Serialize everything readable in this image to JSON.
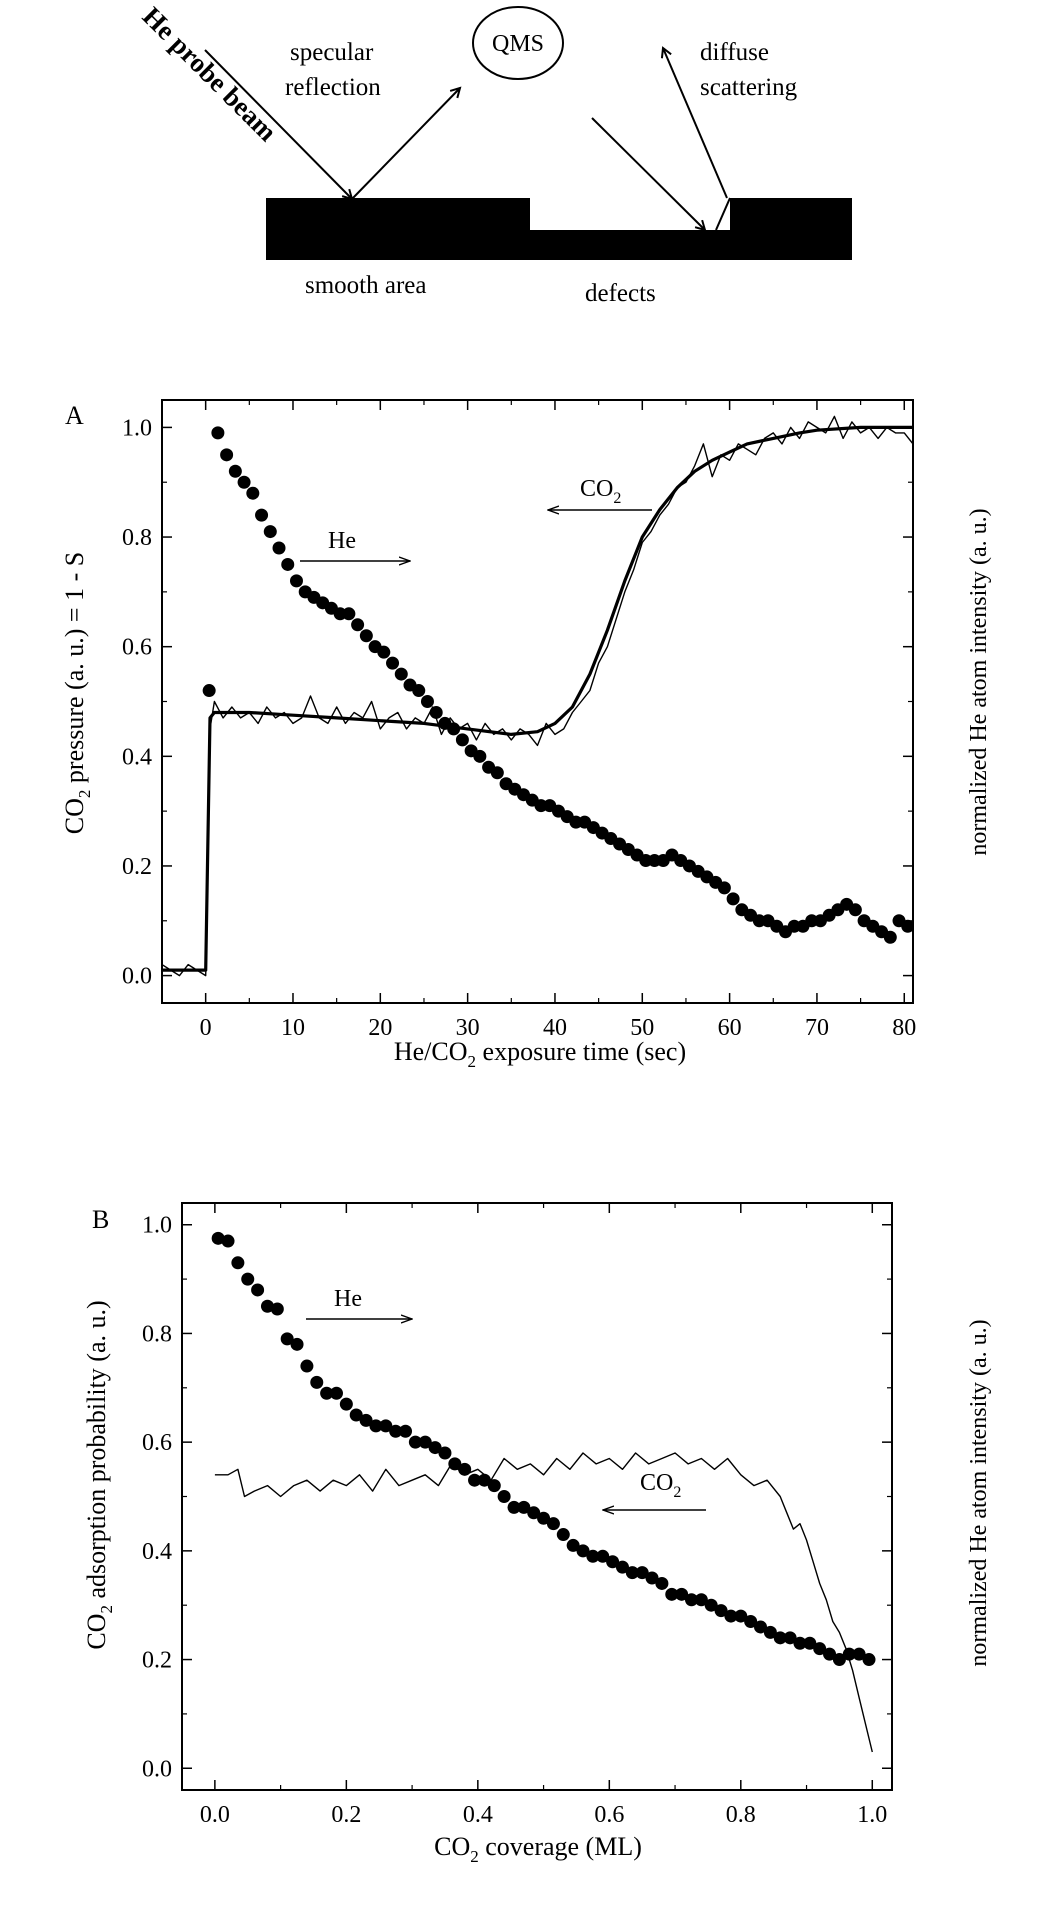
{
  "schematic": {
    "beam_label": "He probe beam",
    "specular_label_1": "specular",
    "specular_label_2": "reflection",
    "detector_label": "QMS",
    "diffuse_label_1": "diffuse",
    "diffuse_label_2": "scattering",
    "smooth_label": "smooth area",
    "defects_label": "defects"
  },
  "chart_data": [
    {
      "type": "line",
      "panel_label": "A",
      "xlabel": "He/CO2 exposure time (sec)",
      "ylabel": "CO2 pressure (a. u.) = 1 - S",
      "ylabel_right": "normalized He atom intensity (a. u.)",
      "xlim": [
        -5,
        81
      ],
      "ylim": [
        -0.05,
        1.05
      ],
      "x_ticks": [
        0,
        10,
        20,
        30,
        40,
        50,
        60,
        70,
        80
      ],
      "y_ticks": [
        "0.0",
        "0.2",
        "0.4",
        "0.6",
        "0.8",
        "1.0"
      ],
      "annotations": [
        {
          "text": "He",
          "arrow": "right",
          "x": 14,
          "y": 0.74
        },
        {
          "text": "CO2",
          "arrow": "left",
          "x": 47,
          "y": 0.83
        }
      ],
      "series": [
        {
          "name": "He",
          "style": "markers",
          "x": [
            0.4,
            1.4,
            2.4,
            3.4,
            4.4,
            5.4,
            6.4,
            7.4,
            8.4,
            9.4,
            10.4,
            11.4,
            12.4,
            13.4,
            14.4,
            15.4,
            16.4,
            17.4,
            18.4,
            19.4,
            20.4,
            21.4,
            22.4,
            23.4,
            24.4,
            25.4,
            26.4,
            27.4,
            28.4,
            29.4,
            30.4,
            31.4,
            32.4,
            33.4,
            34.4,
            35.4,
            36.4,
            37.4,
            38.4,
            39.4,
            40.4,
            41.4,
            42.4,
            43.4,
            44.4,
            45.4,
            46.4,
            47.4,
            48.4,
            49.4,
            50.4,
            51.4,
            52.4,
            53.4,
            54.4,
            55.4,
            56.4,
            57.4,
            58.4,
            59.4,
            60.4,
            61.4,
            62.4,
            63.4,
            64.4,
            65.4,
            66.4,
            67.4,
            68.4,
            69.4,
            70.4,
            71.4,
            72.4,
            73.4,
            74.4,
            75.4,
            76.4,
            77.4,
            78.4,
            79.4,
            80.4
          ],
          "y": [
            0.52,
            0.99,
            0.95,
            0.92,
            0.9,
            0.88,
            0.84,
            0.81,
            0.78,
            0.75,
            0.72,
            0.7,
            0.69,
            0.68,
            0.67,
            0.66,
            0.66,
            0.64,
            0.62,
            0.6,
            0.59,
            0.57,
            0.55,
            0.53,
            0.52,
            0.5,
            0.48,
            0.46,
            0.45,
            0.43,
            0.41,
            0.4,
            0.38,
            0.37,
            0.35,
            0.34,
            0.33,
            0.32,
            0.31,
            0.31,
            0.3,
            0.29,
            0.28,
            0.28,
            0.27,
            0.26,
            0.25,
            0.24,
            0.23,
            0.22,
            0.21,
            0.21,
            0.21,
            0.22,
            0.21,
            0.2,
            0.19,
            0.18,
            0.17,
            0.16,
            0.14,
            0.12,
            0.11,
            0.1,
            0.1,
            0.09,
            0.08,
            0.09,
            0.09,
            0.1,
            0.1,
            0.11,
            0.12,
            0.13,
            0.12,
            0.1,
            0.09,
            0.08,
            0.07,
            0.1,
            0.09
          ]
        },
        {
          "name": "CO2",
          "style": "noisy-line",
          "x": [
            -5,
            -4,
            -3,
            -2,
            -1,
            0,
            0.5,
            1,
            2,
            3,
            4,
            5,
            6,
            7,
            8,
            9,
            10,
            11,
            12,
            13,
            14,
            15,
            16,
            17,
            18,
            19,
            20,
            21,
            22,
            23,
            24,
            25,
            26,
            27,
            28,
            29,
            30,
            31,
            32,
            33,
            34,
            35,
            36,
            37,
            38,
            39,
            40,
            41,
            42,
            43,
            44,
            45,
            46,
            47,
            48,
            49,
            50,
            51,
            52,
            53,
            54,
            55,
            56,
            57,
            58,
            59,
            60,
            61,
            62,
            63,
            64,
            65,
            66,
            67,
            68,
            69,
            70,
            71,
            72,
            73,
            74,
            75,
            76,
            77,
            78,
            79,
            80,
            81
          ],
          "y": [
            0.02,
            0.01,
            0.0,
            0.02,
            0.01,
            0.0,
            0.45,
            0.5,
            0.47,
            0.49,
            0.47,
            0.48,
            0.46,
            0.49,
            0.47,
            0.48,
            0.46,
            0.47,
            0.51,
            0.47,
            0.46,
            0.49,
            0.46,
            0.48,
            0.47,
            0.5,
            0.45,
            0.47,
            0.48,
            0.45,
            0.47,
            0.46,
            0.49,
            0.44,
            0.47,
            0.45,
            0.46,
            0.43,
            0.46,
            0.44,
            0.45,
            0.43,
            0.45,
            0.44,
            0.42,
            0.46,
            0.44,
            0.45,
            0.48,
            0.5,
            0.52,
            0.57,
            0.6,
            0.65,
            0.7,
            0.74,
            0.79,
            0.81,
            0.84,
            0.86,
            0.89,
            0.9,
            0.93,
            0.97,
            0.91,
            0.95,
            0.94,
            0.97,
            0.96,
            0.95,
            0.98,
            0.99,
            0.97,
            1.0,
            0.98,
            1.01,
            1.0,
            0.99,
            1.02,
            0.98,
            1.01,
            0.99,
            1.0,
            0.98,
            1.0,
            0.99,
            0.99,
            0.97
          ]
        },
        {
          "name": "CO2 fit",
          "style": "smooth-line",
          "x": [
            -5,
            -4,
            -3,
            -2,
            -1,
            0,
            0.5,
            1,
            5,
            10,
            15,
            20,
            25,
            30,
            35,
            38,
            40,
            42,
            44,
            46,
            48,
            50,
            52,
            54,
            56,
            58,
            60,
            62,
            65,
            68,
            70,
            75,
            80,
            81
          ],
          "y": [
            0.01,
            0.01,
            0.01,
            0.01,
            0.01,
            0.01,
            0.47,
            0.48,
            0.48,
            0.475,
            0.47,
            0.465,
            0.46,
            0.45,
            0.44,
            0.445,
            0.46,
            0.49,
            0.55,
            0.63,
            0.72,
            0.8,
            0.85,
            0.89,
            0.92,
            0.94,
            0.955,
            0.97,
            0.98,
            0.99,
            0.995,
            1.0,
            1.0,
            1.0
          ]
        }
      ]
    },
    {
      "type": "line",
      "panel_label": "B",
      "xlabel": "CO2 coverage (ML)",
      "ylabel": "CO2 adsorption probability (a. u.)",
      "ylabel_right": "normalized He atom intensity (a. u.)",
      "xlim": [
        -0.05,
        1.03
      ],
      "ylim": [
        -0.04,
        1.04
      ],
      "x_ticks": [
        "0.0",
        "0.2",
        "0.4",
        "0.6",
        "0.8",
        "1.0"
      ],
      "y_ticks": [
        "0.0",
        "0.2",
        "0.4",
        "0.6",
        "0.8",
        "1.0"
      ],
      "annotations": [
        {
          "text": "He",
          "arrow": "right",
          "x": 0.15,
          "y": 0.79
        },
        {
          "text": "CO2",
          "arrow": "left",
          "x": 0.68,
          "y": 0.47
        }
      ],
      "series": [
        {
          "name": "He",
          "style": "markers",
          "x": [
            0.005,
            0.02,
            0.035,
            0.05,
            0.065,
            0.08,
            0.095,
            0.11,
            0.125,
            0.14,
            0.155,
            0.17,
            0.185,
            0.2,
            0.215,
            0.23,
            0.245,
            0.26,
            0.275,
            0.29,
            0.305,
            0.32,
            0.335,
            0.35,
            0.365,
            0.38,
            0.395,
            0.41,
            0.425,
            0.44,
            0.455,
            0.47,
            0.485,
            0.5,
            0.515,
            0.53,
            0.545,
            0.56,
            0.575,
            0.59,
            0.605,
            0.62,
            0.635,
            0.65,
            0.665,
            0.68,
            0.695,
            0.71,
            0.725,
            0.74,
            0.755,
            0.77,
            0.785,
            0.8,
            0.815,
            0.83,
            0.845,
            0.86,
            0.875,
            0.89,
            0.905,
            0.92,
            0.935,
            0.95,
            0.965,
            0.98,
            0.995
          ],
          "y": [
            0.975,
            0.97,
            0.93,
            0.9,
            0.88,
            0.85,
            0.845,
            0.79,
            0.78,
            0.74,
            0.71,
            0.69,
            0.69,
            0.67,
            0.65,
            0.64,
            0.63,
            0.63,
            0.62,
            0.62,
            0.6,
            0.6,
            0.59,
            0.58,
            0.56,
            0.55,
            0.53,
            0.53,
            0.52,
            0.5,
            0.48,
            0.48,
            0.47,
            0.46,
            0.45,
            0.43,
            0.41,
            0.4,
            0.39,
            0.39,
            0.38,
            0.37,
            0.36,
            0.36,
            0.35,
            0.34,
            0.32,
            0.32,
            0.31,
            0.31,
            0.3,
            0.29,
            0.28,
            0.28,
            0.27,
            0.26,
            0.25,
            0.24,
            0.24,
            0.23,
            0.23,
            0.22,
            0.21,
            0.2,
            0.21,
            0.21,
            0.2
          ]
        },
        {
          "name": "CO2",
          "style": "noisy-line",
          "x": [
            0.0,
            0.02,
            0.035,
            0.045,
            0.06,
            0.08,
            0.1,
            0.12,
            0.14,
            0.16,
            0.18,
            0.2,
            0.22,
            0.24,
            0.26,
            0.28,
            0.3,
            0.32,
            0.34,
            0.36,
            0.38,
            0.4,
            0.42,
            0.44,
            0.46,
            0.48,
            0.5,
            0.52,
            0.54,
            0.56,
            0.58,
            0.6,
            0.62,
            0.64,
            0.66,
            0.68,
            0.7,
            0.72,
            0.74,
            0.76,
            0.78,
            0.8,
            0.82,
            0.84,
            0.86,
            0.87,
            0.88,
            0.89,
            0.9,
            0.91,
            0.92,
            0.93,
            0.94,
            0.95,
            0.96,
            0.97,
            0.98,
            0.99,
            1.0
          ],
          "y": [
            0.54,
            0.54,
            0.55,
            0.5,
            0.51,
            0.52,
            0.5,
            0.52,
            0.53,
            0.51,
            0.53,
            0.52,
            0.54,
            0.51,
            0.55,
            0.52,
            0.53,
            0.54,
            0.52,
            0.56,
            0.54,
            0.55,
            0.53,
            0.57,
            0.55,
            0.56,
            0.54,
            0.57,
            0.55,
            0.58,
            0.56,
            0.57,
            0.55,
            0.58,
            0.56,
            0.57,
            0.58,
            0.56,
            0.57,
            0.55,
            0.57,
            0.54,
            0.52,
            0.53,
            0.5,
            0.47,
            0.44,
            0.45,
            0.42,
            0.38,
            0.34,
            0.31,
            0.27,
            0.25,
            0.22,
            0.18,
            0.13,
            0.08,
            0.03
          ]
        }
      ]
    }
  ]
}
